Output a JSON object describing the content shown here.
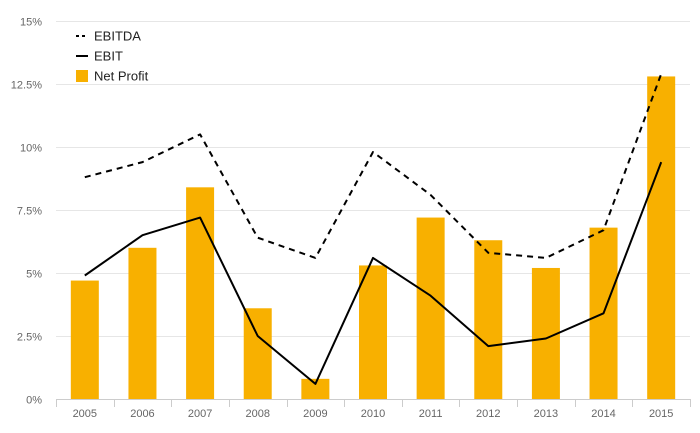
{
  "chart_data": {
    "type": "bar",
    "categories": [
      "2005",
      "2006",
      "2007",
      "2008",
      "2009",
      "2010",
      "2011",
      "2012",
      "2013",
      "2014",
      "2015"
    ],
    "series": [
      {
        "name": "EBITDA",
        "kind": "line",
        "style": "dashed",
        "color": "#000000",
        "values": [
          8.8,
          9.4,
          10.5,
          6.4,
          5.6,
          9.8,
          8.1,
          5.8,
          5.6,
          6.7,
          12.9
        ]
      },
      {
        "name": "EBIT",
        "kind": "line",
        "style": "solid",
        "color": "#000000",
        "values": [
          4.9,
          6.5,
          7.2,
          2.5,
          0.6,
          5.6,
          4.1,
          2.1,
          2.4,
          3.4,
          9.4
        ]
      },
      {
        "name": "Net Profit",
        "kind": "bar",
        "color": "#f8b000",
        "values": [
          4.7,
          6.0,
          8.4,
          3.6,
          0.8,
          5.3,
          7.2,
          6.3,
          5.2,
          6.8,
          12.8
        ]
      }
    ],
    "ylim": [
      0,
      15
    ],
    "yticks": [
      0,
      2.5,
      5,
      7.5,
      10,
      12.5,
      15
    ],
    "ytick_labels": [
      "0%",
      "2.5%",
      "5%",
      "7.5%",
      "10%",
      "12.5%",
      "15%"
    ],
    "grid": true,
    "legend_position": "top-left",
    "title": "",
    "xlabel": "",
    "ylabel": ""
  }
}
